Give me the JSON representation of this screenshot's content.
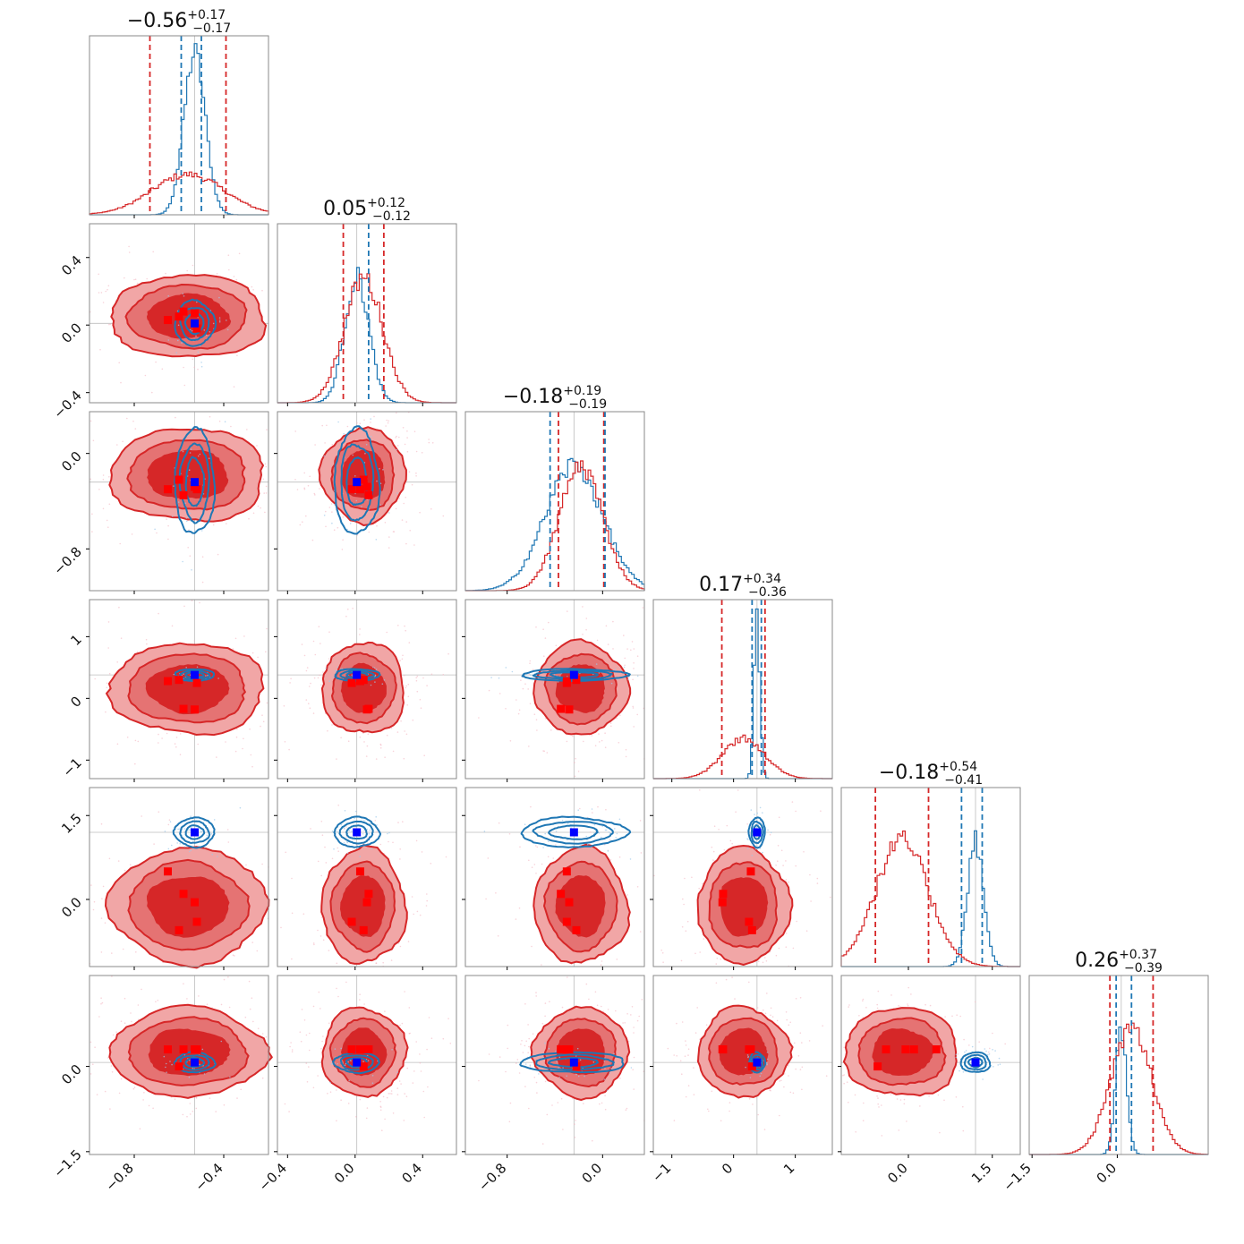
{
  "colors": {
    "red": "#d62728",
    "red_light": "#f1a6a6",
    "red_mid": "#e57373",
    "blue": "#1f77b4",
    "blue_marker": "#0000ff",
    "red_marker": "#ff0000",
    "grid": "#bdbdbd",
    "frame": "#8a8a8a"
  },
  "chart_data": {
    "type": "corner",
    "n_params": 6,
    "params": [
      {
        "index": 0,
        "title": {
          "median": "−0.56",
          "plus": "+0.17",
          "minus": "−0.17"
        },
        "range": [
          -1.0,
          -0.2
        ],
        "ticks": [
          {
            "v": -0.8,
            "label": "−0.8"
          },
          {
            "v": -0.4,
            "label": "−0.4"
          }
        ],
        "truth": -0.53,
        "red_quantiles": [
          -0.73,
          -0.39
        ],
        "blue_quantiles": [
          -0.59,
          -0.5
        ]
      },
      {
        "index": 1,
        "title": {
          "median": "0.05",
          "plus": "+0.12",
          "minus": "−0.12"
        },
        "range": [
          -0.46,
          0.6
        ],
        "ticks": [
          {
            "v": -0.4,
            "label": "−0.4"
          },
          {
            "v": 0.0,
            "label": "0.0"
          },
          {
            "v": 0.4,
            "label": "0.4"
          }
        ],
        "truth": 0.0,
        "red_quantiles": [
          -0.07,
          0.17
        ],
        "blue_quantiles": [
          0.08
        ]
      },
      {
        "index": 2,
        "title": {
          "median": "−0.18",
          "plus": "+0.19",
          "minus": "−0.19"
        },
        "range": [
          -1.15,
          0.35
        ],
        "ticks": [
          {
            "v": -0.8,
            "label": "−0.8"
          },
          {
            "v": 0.0,
            "label": "0.0"
          }
        ],
        "truth": -0.24,
        "red_quantiles": [
          -0.37,
          0.01
        ],
        "blue_quantiles": [
          -0.44,
          0.02
        ]
      },
      {
        "index": 3,
        "title": {
          "median": "0.17",
          "plus": "+0.34",
          "minus": "−0.36"
        },
        "range": [
          -1.3,
          1.6
        ],
        "ticks": [
          {
            "v": -1,
            "label": "−1"
          },
          {
            "v": 0,
            "label": "0"
          },
          {
            "v": 1,
            "label": "1"
          }
        ],
        "truth": 0.38,
        "red_quantiles": [
          -0.19,
          0.51
        ],
        "blue_quantiles": [
          0.3,
          0.45
        ]
      },
      {
        "index": 4,
        "title": {
          "median": "−0.18",
          "plus": "+0.54",
          "minus": "−0.41"
        },
        "range": [
          -1.2,
          2.0
        ],
        "ticks": [
          {
            "v": 0.0,
            "label": "0.0"
          },
          {
            "v": 1.5,
            "label": "1.5"
          }
        ],
        "truth": 1.2,
        "red_quantiles": [
          -0.59,
          0.36
        ],
        "blue_quantiles": [
          0.95,
          1.32
        ]
      },
      {
        "index": 5,
        "title": {
          "median": "0.26",
          "plus": "+0.37",
          "minus": "−0.39"
        },
        "range": [
          -1.55,
          1.6
        ],
        "ticks": [
          {
            "v": -1.5,
            "label": "−1.5"
          },
          {
            "v": 0.0,
            "label": "0.0"
          }
        ],
        "truth": 0.07,
        "red_quantiles": [
          -0.13,
          0.63
        ],
        "blue_quantiles": [
          -0.02,
          0.25
        ]
      }
    ],
    "y_ticks": {
      "1": [
        {
          "v": 0.4,
          "label": "0.4"
        },
        {
          "v": 0.0,
          "label": "0.0"
        },
        {
          "v": -0.4,
          "label": "−0.4"
        }
      ],
      "2": [
        {
          "v": 0.0,
          "label": "0.0"
        },
        {
          "v": -0.8,
          "label": "−0.8"
        }
      ],
      "3": [
        {
          "v": 1,
          "label": "1"
        },
        {
          "v": 0,
          "label": "0"
        },
        {
          "v": -1,
          "label": "−1"
        }
      ],
      "4": [
        {
          "v": 1.5,
          "label": "1.5"
        },
        {
          "v": 0.0,
          "label": "0.0"
        }
      ],
      "5": [
        {
          "v": 0.0,
          "label": "0.0"
        },
        {
          "v": -1.5,
          "label": "−1.5"
        }
      ]
    },
    "red_points": [
      [
        -0.58,
        0.08,
        -0.35,
        -0.17,
        0.1,
        0.3
      ],
      [
        -0.65,
        0.03,
        -0.3,
        0.28,
        0.5,
        0.3
      ],
      [
        -0.52,
        -0.02,
        -0.3,
        0.25,
        -0.4,
        0.3
      ],
      [
        -0.53,
        0.07,
        -0.28,
        -0.18,
        -0.05,
        0.3
      ],
      [
        -0.6,
        0.05,
        -0.22,
        0.3,
        -0.55,
        0.0
      ]
    ],
    "blue_center": [
      -0.53,
      0.01,
      -0.24,
      0.38,
      1.2,
      0.07
    ],
    "red_spread": [
      0.17,
      0.12,
      0.19,
      0.36,
      0.5,
      0.38
    ],
    "blue_spread": [
      0.04,
      0.06,
      0.2,
      0.04,
      0.12,
      0.08
    ]
  }
}
